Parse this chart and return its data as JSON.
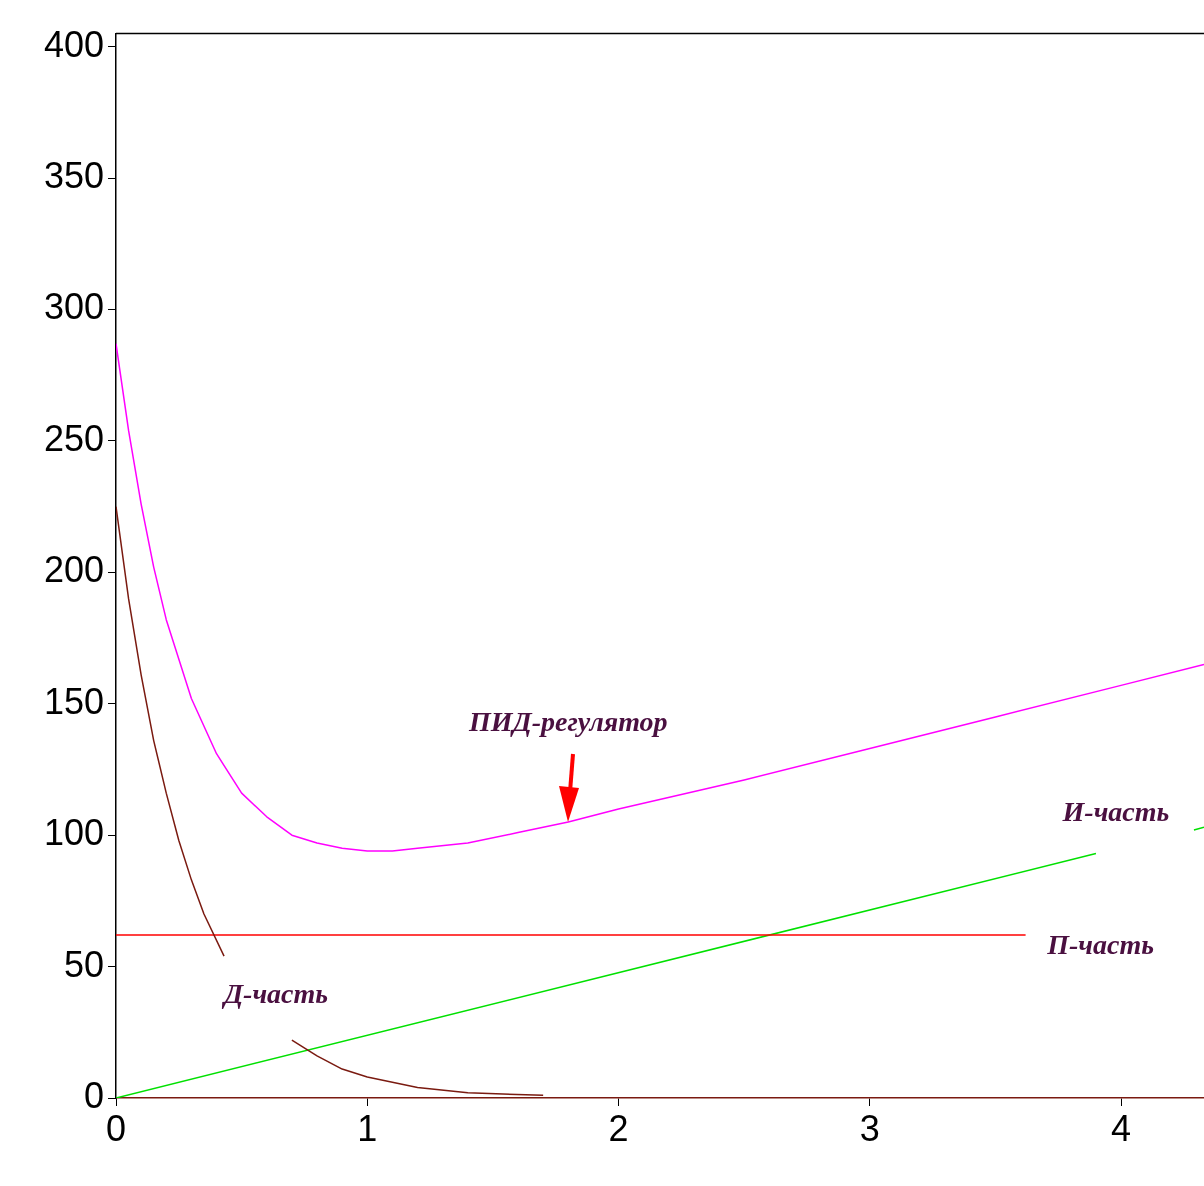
{
  "chart_data": {
    "type": "line",
    "xlim": [
      0,
      4.33
    ],
    "ylim": [
      0,
      405
    ],
    "xticks": [
      0,
      1,
      2,
      3,
      4
    ],
    "yticks": [
      0,
      50,
      100,
      150,
      200,
      250,
      300,
      350,
      400
    ],
    "grid": false,
    "legend": false,
    "marker": "none",
    "line_style": "solid",
    "series": [
      {
        "name": "ПИД-регулятор",
        "color": "#ff00ff",
        "x": [
          0,
          0.05,
          0.1,
          0.15,
          0.2,
          0.3,
          0.4,
          0.5,
          0.6,
          0.7,
          0.8,
          0.9,
          1.0,
          1.1,
          1.2,
          1.4,
          1.6,
          1.8,
          2.0,
          2.5,
          3.0,
          3.5,
          4.0,
          4.33
        ],
        "values": [
          287,
          254,
          226,
          202,
          182,
          152,
          131,
          116,
          107,
          100,
          97,
          95,
          94,
          94,
          95,
          97,
          101,
          105,
          110,
          121,
          133,
          145,
          157,
          165
        ]
      },
      {
        "name": "Д-часть",
        "color": "#7a1a10",
        "x": [
          0,
          0.05,
          0.1,
          0.15,
          0.2,
          0.25,
          0.3,
          0.35,
          0.43,
          0.55,
          0.7,
          0.8,
          0.9,
          1.0,
          1.2,
          1.4,
          1.7
        ],
        "values": [
          225,
          190,
          161,
          136,
          116,
          98,
          83,
          70,
          54,
          null,
          22,
          16,
          11,
          8,
          4,
          2,
          1
        ]
      },
      {
        "name": "П-часть",
        "color": "#ff0000",
        "x": [
          0,
          3.62
        ],
        "values": [
          62,
          62
        ]
      },
      {
        "name": "И-часть",
        "color": "#00e000",
        "x": [
          0,
          3.9,
          4.1,
          4.29,
          4.33
        ],
        "values": [
          0,
          93,
          null,
          102,
          103
        ]
      }
    ]
  }
}
